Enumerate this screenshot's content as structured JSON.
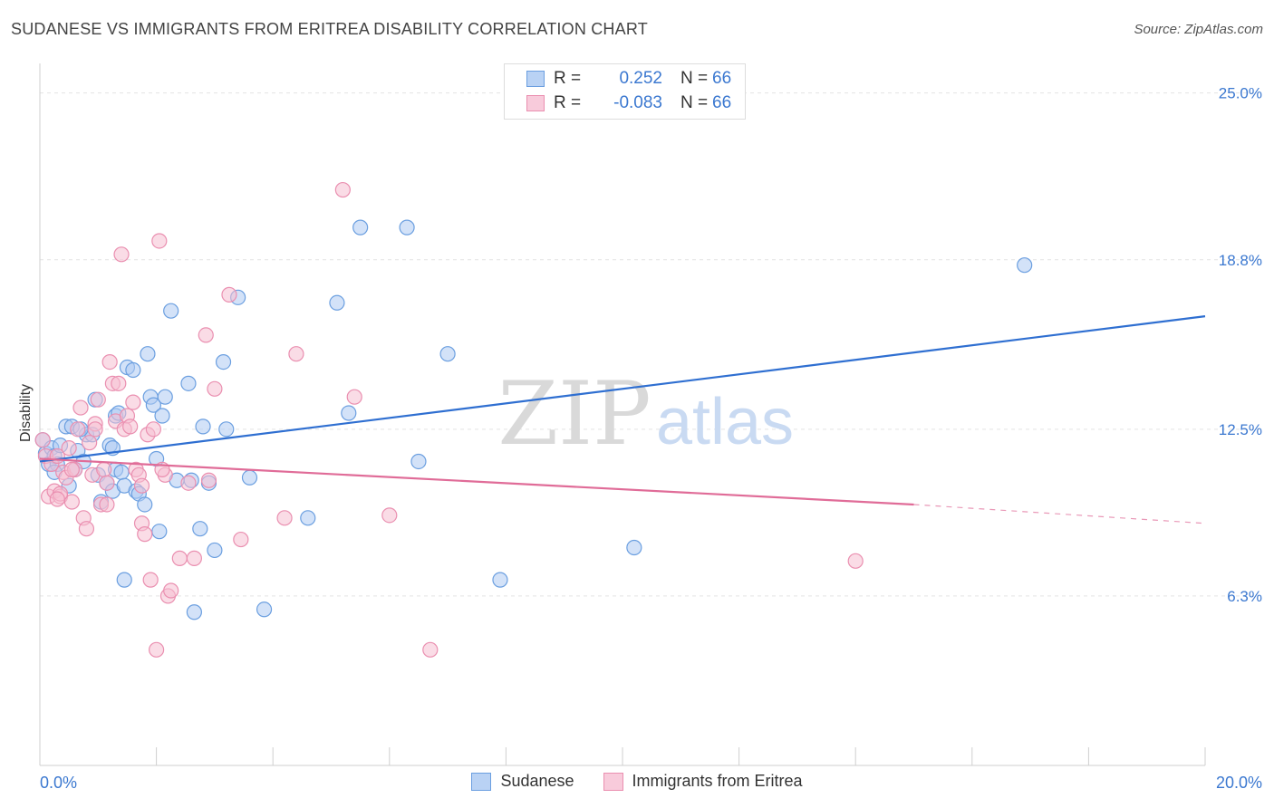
{
  "header": {
    "title": "SUDANESE VS IMMIGRANTS FROM ERITREA DISABILITY CORRELATION CHART",
    "source": "Source: ZipAtlas.com"
  },
  "watermark": {
    "zip": "ZIP",
    "atlas": "atlas"
  },
  "legend": {
    "rows": [
      {
        "r_label": "R =",
        "r_value": "0.252",
        "n_label": "N =",
        "n_value": "66"
      },
      {
        "r_label": "R =",
        "r_value": "-0.083",
        "n_label": "N =",
        "n_value": "66"
      }
    ]
  },
  "colors": {
    "blue_fill": "#aecbf2",
    "blue_stroke": "#6b9fe0",
    "blue_line": "#2f6fd1",
    "pink_fill": "#f6bfd2",
    "pink_stroke": "#ea8fb0",
    "pink_line": "#e06c98",
    "grid": "#e4e4e4",
    "tick_text": "#3b78d0"
  },
  "chart_data": {
    "type": "scatter",
    "title": "SUDANESE VS IMMIGRANTS FROM ERITREA DISABILITY CORRELATION CHART",
    "xlabel": "",
    "ylabel": "Disability",
    "xlim": [
      0,
      20
    ],
    "ylim": [
      0,
      26.1
    ],
    "x_tick_labels": [
      "0.0%",
      "20.0%"
    ],
    "y_ticks": [
      6.3,
      12.5,
      18.8,
      25.0
    ],
    "y_tick_labels": [
      "6.3%",
      "12.5%",
      "18.8%",
      "25.0%"
    ],
    "grid": true,
    "legend_position": "bottom",
    "series": [
      {
        "name": "Sudanese",
        "trend": {
          "x": [
            0,
            20
          ],
          "y": [
            11.3,
            16.7
          ],
          "style": "solid"
        },
        "points": [
          [
            0.05,
            12.1
          ],
          [
            0.1,
            11.6
          ],
          [
            0.15,
            11.2
          ],
          [
            0.2,
            11.8
          ],
          [
            0.25,
            11.5
          ],
          [
            0.3,
            11.2
          ],
          [
            0.35,
            11.9
          ],
          [
            0.45,
            12.6
          ],
          [
            0.55,
            12.6
          ],
          [
            0.6,
            11.0
          ],
          [
            0.65,
            11.7
          ],
          [
            0.75,
            11.3
          ],
          [
            0.8,
            12.3
          ],
          [
            0.9,
            12.3
          ],
          [
            0.95,
            13.6
          ],
          [
            1.0,
            10.8
          ],
          [
            1.05,
            9.8
          ],
          [
            1.15,
            10.5
          ],
          [
            1.2,
            11.9
          ],
          [
            1.25,
            10.2
          ],
          [
            1.3,
            11.0
          ],
          [
            0.5,
            10.4
          ],
          [
            1.3,
            13.0
          ],
          [
            1.35,
            13.1
          ],
          [
            1.4,
            10.9
          ],
          [
            1.45,
            10.4
          ],
          [
            1.5,
            14.8
          ],
          [
            1.6,
            14.7
          ],
          [
            1.65,
            10.2
          ],
          [
            1.7,
            10.1
          ],
          [
            1.8,
            9.7
          ],
          [
            1.85,
            15.3
          ],
          [
            1.9,
            13.7
          ],
          [
            1.95,
            13.4
          ],
          [
            2.0,
            11.4
          ],
          [
            2.05,
            8.7
          ],
          [
            2.1,
            13.0
          ],
          [
            2.15,
            13.7
          ],
          [
            2.25,
            16.9
          ],
          [
            2.35,
            10.6
          ],
          [
            2.55,
            14.2
          ],
          [
            2.6,
            10.6
          ],
          [
            2.75,
            8.8
          ],
          [
            2.8,
            12.6
          ],
          [
            2.9,
            10.5
          ],
          [
            3.0,
            8.0
          ],
          [
            3.15,
            15.0
          ],
          [
            3.2,
            12.5
          ],
          [
            3.4,
            17.4
          ],
          [
            3.6,
            10.7
          ],
          [
            3.85,
            5.8
          ],
          [
            4.6,
            9.2
          ],
          [
            5.1,
            17.2
          ],
          [
            5.3,
            13.1
          ],
          [
            5.5,
            20.0
          ],
          [
            6.3,
            20.0
          ],
          [
            6.5,
            11.3
          ],
          [
            7.0,
            15.3
          ],
          [
            7.9,
            6.9
          ],
          [
            10.2,
            8.1
          ],
          [
            16.9,
            18.6
          ],
          [
            1.45,
            6.9
          ],
          [
            2.65,
            5.7
          ],
          [
            1.25,
            11.8
          ],
          [
            0.25,
            10.9
          ],
          [
            0.7,
            12.5
          ]
        ]
      },
      {
        "name": "Immigrants from Eritrea",
        "trend": {
          "x": [
            0,
            15
          ],
          "y": [
            11.4,
            9.7
          ],
          "style": "solid",
          "dashed_extension": {
            "x": [
              15,
              20
            ],
            "y": [
              9.7,
              9.0
            ]
          }
        },
        "points": [
          [
            0.05,
            12.1
          ],
          [
            0.1,
            11.5
          ],
          [
            0.15,
            10.0
          ],
          [
            0.2,
            11.2
          ],
          [
            0.25,
            10.2
          ],
          [
            0.3,
            11.5
          ],
          [
            0.35,
            10.0
          ],
          [
            0.4,
            10.9
          ],
          [
            0.45,
            10.7
          ],
          [
            0.5,
            11.8
          ],
          [
            0.55,
            9.8
          ],
          [
            0.6,
            11.0
          ],
          [
            0.65,
            12.5
          ],
          [
            0.7,
            13.3
          ],
          [
            0.75,
            9.2
          ],
          [
            0.8,
            8.8
          ],
          [
            0.85,
            12.0
          ],
          [
            0.9,
            10.8
          ],
          [
            0.95,
            12.7
          ],
          [
            1.0,
            13.6
          ],
          [
            1.05,
            9.7
          ],
          [
            1.1,
            11.0
          ],
          [
            1.15,
            9.7
          ],
          [
            1.2,
            15.0
          ],
          [
            1.25,
            14.2
          ],
          [
            1.3,
            12.8
          ],
          [
            1.35,
            14.2
          ],
          [
            1.4,
            19.0
          ],
          [
            1.45,
            12.5
          ],
          [
            1.5,
            13.0
          ],
          [
            1.55,
            12.6
          ],
          [
            1.6,
            13.5
          ],
          [
            1.65,
            11.0
          ],
          [
            1.7,
            10.8
          ],
          [
            1.75,
            9.0
          ],
          [
            1.8,
            8.6
          ],
          [
            1.85,
            12.3
          ],
          [
            1.9,
            6.9
          ],
          [
            2.0,
            4.3
          ],
          [
            2.05,
            19.5
          ],
          [
            2.15,
            10.8
          ],
          [
            2.2,
            6.3
          ],
          [
            2.25,
            6.5
          ],
          [
            2.4,
            7.7
          ],
          [
            2.55,
            10.5
          ],
          [
            2.65,
            7.7
          ],
          [
            2.85,
            16.0
          ],
          [
            2.9,
            10.6
          ],
          [
            3.0,
            14.0
          ],
          [
            3.25,
            17.5
          ],
          [
            3.45,
            8.4
          ],
          [
            4.2,
            9.2
          ],
          [
            4.4,
            15.3
          ],
          [
            5.2,
            21.4
          ],
          [
            5.4,
            13.7
          ],
          [
            6.0,
            9.3
          ],
          [
            6.7,
            4.3
          ],
          [
            14.0,
            7.6
          ],
          [
            0.95,
            12.5
          ],
          [
            1.15,
            10.5
          ],
          [
            0.35,
            10.1
          ],
          [
            0.55,
            11.0
          ],
          [
            1.75,
            10.4
          ],
          [
            2.1,
            11.0
          ],
          [
            0.3,
            9.9
          ],
          [
            1.95,
            12.5
          ]
        ]
      }
    ]
  }
}
